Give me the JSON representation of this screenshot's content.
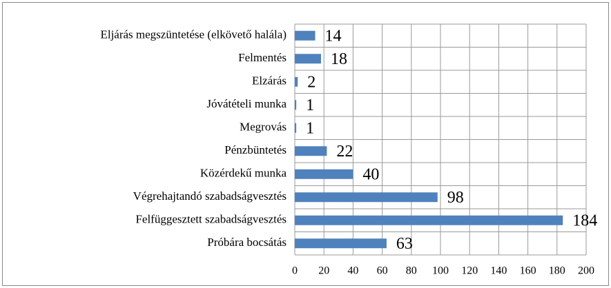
{
  "chart_data": {
    "type": "bar",
    "orientation": "horizontal",
    "categories": [
      "Eljárás megszüntetése (elkövető halála)",
      "Felmentés",
      "Elzárás",
      "Jóvátételi munka",
      "Megrovás",
      "Pénzbüntetés",
      "Közérdekű munka",
      "Végrehajtandó szabadságvesztés",
      "Felfüggesztett szabadságvesztés",
      "Próbára bocsátás"
    ],
    "values": [
      14,
      18,
      2,
      1,
      1,
      22,
      40,
      98,
      184,
      63
    ],
    "color": "#4f81bd",
    "xlim": [
      0,
      200
    ],
    "xticks": [
      0,
      20,
      40,
      60,
      80,
      100,
      120,
      140,
      160,
      180,
      200
    ],
    "grid": true
  }
}
